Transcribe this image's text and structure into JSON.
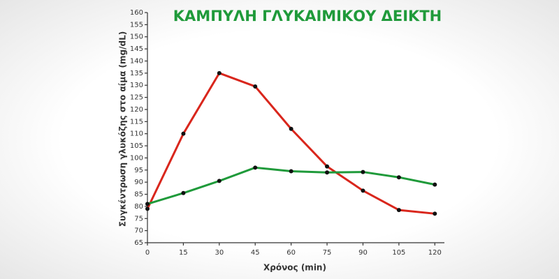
{
  "chart_data": {
    "type": "line",
    "title": "ΚΑΜΠΥΛΗ ΓΛΥΚΑΙΜΙΚΟΥ ΔΕΙΚΤΗ",
    "x_label": "Χρόνος (min)",
    "y_label": "Συγκέντρωση γλυκόζης στο αίμα (mg/dL)",
    "x": [
      0,
      15,
      30,
      45,
      60,
      75,
      90,
      105,
      120
    ],
    "series": [
      {
        "color": "#d9261c",
        "values": [
          79,
          110,
          135,
          129.5,
          112,
          96.5,
          86.5,
          78.5,
          77
        ]
      },
      {
        "color": "#1f9a3a",
        "values": [
          81,
          85.5,
          90.5,
          96,
          94.5,
          94,
          94.2,
          92,
          89
        ]
      }
    ],
    "xlim": [
      0,
      124
    ],
    "xticks": [
      0,
      15,
      30,
      45,
      60,
      75,
      90,
      105,
      120
    ],
    "ylim": [
      65,
      160
    ],
    "yticks": [
      65,
      70,
      75,
      80,
      85,
      90,
      95,
      100,
      105,
      110,
      115,
      120,
      125,
      130,
      135,
      140,
      145,
      150,
      155,
      160
    ],
    "title_color": "#1f9a3a"
  }
}
